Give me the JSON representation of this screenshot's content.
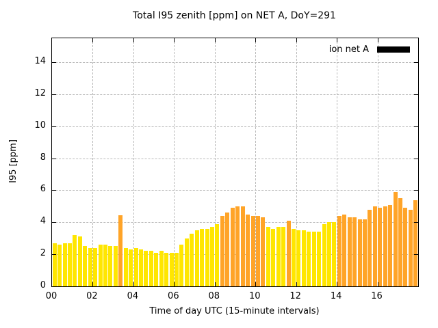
{
  "figure": {
    "title": "Total I95 zenith [ppm] on NET A, DoY=291"
  },
  "axes": {
    "x_label": "Time of day UTC (15-minute intervals)",
    "y_label": "I95 [ppm]"
  },
  "legend": {
    "label": "ion net A",
    "swatch_color": "#000000"
  },
  "chart_data": {
    "type": "bar",
    "title": "Total I95 zenith [ppm] on NET A, DoY=291",
    "xlabel": "Time of day UTC (15-minute intervals)",
    "ylabel": "I95 [ppm]",
    "ylim": [
      0,
      15.5
    ],
    "x_range_hours": [
      0,
      18
    ],
    "y_ticks": [
      0,
      2,
      4,
      6,
      8,
      10,
      12,
      14
    ],
    "x_tick_hours": [
      0,
      2,
      4,
      6,
      8,
      10,
      12,
      14,
      16
    ],
    "x_tick_labels": [
      "00",
      "02",
      "04",
      "06",
      "08",
      "10",
      "12",
      "14",
      "16"
    ],
    "grid": true,
    "legend_position": "top-right",
    "interval_minutes": 15,
    "start_time": "00:00",
    "palette": {
      "y": "#ffe600",
      "o": "#ffa428"
    },
    "series": [
      {
        "name": "ion net A",
        "values": [
          2.7,
          2.6,
          2.7,
          2.7,
          3.2,
          3.1,
          2.5,
          2.4,
          2.4,
          2.6,
          2.6,
          2.5,
          2.5,
          4.45,
          2.4,
          2.3,
          2.4,
          2.3,
          2.2,
          2.2,
          2.1,
          2.2,
          2.1,
          2.1,
          2.1,
          2.6,
          3.0,
          3.3,
          3.5,
          3.6,
          3.6,
          3.7,
          3.9,
          4.4,
          4.6,
          4.9,
          5.0,
          5.0,
          4.5,
          4.4,
          4.4,
          4.3,
          3.7,
          3.6,
          3.7,
          3.7,
          4.1,
          3.6,
          3.5,
          3.5,
          3.4,
          3.4,
          3.4,
          3.9,
          4.0,
          4.0,
          4.4,
          4.5,
          4.3,
          4.3,
          4.2,
          4.2,
          4.8,
          5.0,
          4.9,
          5.0,
          5.1,
          5.9,
          5.5,
          4.9,
          4.8,
          5.4
        ],
        "colors": [
          "y",
          "y",
          "y",
          "y",
          "y",
          "y",
          "y",
          "y",
          "y",
          "y",
          "y",
          "y",
          "y",
          "o",
          "y",
          "y",
          "y",
          "y",
          "y",
          "y",
          "y",
          "y",
          "y",
          "y",
          "y",
          "y",
          "y",
          "y",
          "y",
          "y",
          "y",
          "y",
          "y",
          "o",
          "o",
          "o",
          "o",
          "o",
          "o",
          "o",
          "o",
          "o",
          "y",
          "y",
          "y",
          "y",
          "o",
          "y",
          "y",
          "y",
          "y",
          "y",
          "y",
          "y",
          "y",
          "y",
          "o",
          "o",
          "o",
          "o",
          "o",
          "o",
          "o",
          "o",
          "o",
          "o",
          "o",
          "o",
          "o",
          "o",
          "o",
          "o"
        ]
      }
    ]
  }
}
